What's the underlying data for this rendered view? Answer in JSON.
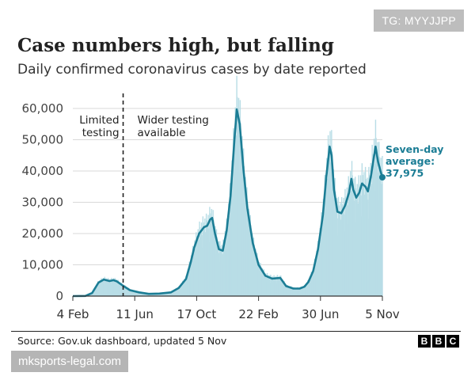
{
  "tag": "TG: MYYJJPP",
  "watermark": "mksports-legal.com",
  "source": "Source: Gov.uk dashboard, updated 5 Nov",
  "brand": [
    "B",
    "B",
    "C"
  ],
  "colors": {
    "line": "#1b7d95",
    "bars": "#b8dde6",
    "grid": "#d9d9d9",
    "axis": "#333333",
    "annotation": "#1b7d95"
  },
  "chart_data": {
    "type": "area",
    "title": "Case numbers high, but falling",
    "subtitle": "Daily confirmed coronavirus cases by date reported",
    "xlabel": "",
    "ylabel": "",
    "x_ticks": [
      "4 Feb",
      "11 Jun",
      "17 Oct",
      "22 Feb",
      "30 Jun",
      "5 Nov"
    ],
    "x_tick_dates": [
      "2020-02-04",
      "2020-06-11",
      "2020-10-17",
      "2021-02-22",
      "2021-06-30",
      "2021-11-05"
    ],
    "y_ticks": [
      "0",
      "10,000",
      "20,000",
      "30,000",
      "40,000",
      "50,000",
      "60,000"
    ],
    "ylim": [
      0,
      60000
    ],
    "grid": true,
    "annotations": {
      "divider_date": "2020-05-18",
      "left_label": "Limited\ntesting",
      "right_label": "Wider testing\navailable",
      "end_label": "Seven-day\naverage:\n37,975"
    },
    "series": [
      {
        "name": "Seven-day average",
        "points": [
          [
            "2020-02-04",
            0
          ],
          [
            "2020-03-01",
            50
          ],
          [
            "2020-03-15",
            1000
          ],
          [
            "2020-03-28",
            4300
          ],
          [
            "2020-04-08",
            5300
          ],
          [
            "2020-04-20",
            4800
          ],
          [
            "2020-04-28",
            5100
          ],
          [
            "2020-05-05",
            4700
          ],
          [
            "2020-05-18",
            3300
          ],
          [
            "2020-06-01",
            1900
          ],
          [
            "2020-06-20",
            1200
          ],
          [
            "2020-07-10",
            700
          ],
          [
            "2020-08-01",
            800
          ],
          [
            "2020-08-25",
            1200
          ],
          [
            "2020-09-10",
            2600
          ],
          [
            "2020-09-25",
            5500
          ],
          [
            "2020-10-05",
            11000
          ],
          [
            "2020-10-12",
            15500
          ],
          [
            "2020-10-22",
            20000
          ],
          [
            "2020-11-01",
            22000
          ],
          [
            "2020-11-08",
            22500
          ],
          [
            "2020-11-14",
            24500
          ],
          [
            "2020-11-18",
            25000
          ],
          [
            "2020-11-24",
            20000
          ],
          [
            "2020-12-02",
            15000
          ],
          [
            "2020-12-10",
            14500
          ],
          [
            "2020-12-18",
            21000
          ],
          [
            "2020-12-26",
            32000
          ],
          [
            "2021-01-03",
            50000
          ],
          [
            "2021-01-08",
            59700
          ],
          [
            "2021-01-14",
            55000
          ],
          [
            "2021-01-22",
            40000
          ],
          [
            "2021-01-30",
            28000
          ],
          [
            "2021-02-10",
            17000
          ],
          [
            "2021-02-22",
            10000
          ],
          [
            "2021-03-08",
            6500
          ],
          [
            "2021-03-22",
            5600
          ],
          [
            "2021-04-08",
            5800
          ],
          [
            "2021-04-20",
            3200
          ],
          [
            "2021-05-05",
            2400
          ],
          [
            "2021-05-18",
            2400
          ],
          [
            "2021-05-28",
            3000
          ],
          [
            "2021-06-05",
            4500
          ],
          [
            "2021-06-15",
            8000
          ],
          [
            "2021-06-25",
            15000
          ],
          [
            "2021-07-05",
            26000
          ],
          [
            "2021-07-12",
            38000
          ],
          [
            "2021-07-19",
            47800
          ],
          [
            "2021-07-23",
            45000
          ],
          [
            "2021-07-28",
            34000
          ],
          [
            "2021-08-04",
            27000
          ],
          [
            "2021-08-12",
            26500
          ],
          [
            "2021-08-20",
            29000
          ],
          [
            "2021-08-28",
            33000
          ],
          [
            "2021-09-02",
            37500
          ],
          [
            "2021-09-06",
            34000
          ],
          [
            "2021-09-12",
            31500
          ],
          [
            "2021-09-18",
            33000
          ],
          [
            "2021-09-24",
            36000
          ],
          [
            "2021-10-01",
            35000
          ],
          [
            "2021-10-06",
            33500
          ],
          [
            "2021-10-12",
            38000
          ],
          [
            "2021-10-18",
            44000
          ],
          [
            "2021-10-22",
            47800
          ],
          [
            "2021-10-27",
            43000
          ],
          [
            "2021-11-01",
            40000
          ],
          [
            "2021-11-05",
            37975
          ]
        ]
      }
    ]
  }
}
